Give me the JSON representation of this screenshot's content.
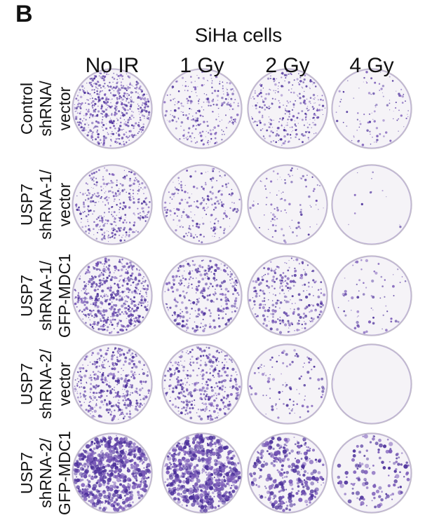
{
  "panel_label": "B",
  "title": "SiHa cells",
  "columns": [
    "No IR",
    "1 Gy",
    "2 Gy",
    "4 Gy"
  ],
  "rows": [
    [
      "Control",
      "shRNA/",
      "vector"
    ],
    [
      "USP7",
      "shRNA-1/",
      "vector"
    ],
    [
      "USP7",
      "shRNA-1/",
      "GFP-MDC1"
    ],
    [
      "USP7",
      "shRNA-2/",
      "vector"
    ],
    [
      "USP7",
      "shRNA-2/",
      "GFP-MDC1"
    ]
  ]
}
